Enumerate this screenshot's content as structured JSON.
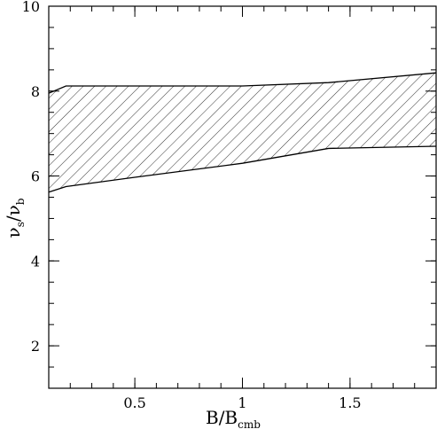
{
  "chart_data": {
    "type": "area",
    "title": "",
    "xlabel": {
      "main": "B/B",
      "sub": "cmb"
    },
    "ylabel": {
      "main": "ν",
      "sub1": "s",
      "slash": "/ν",
      "sub2": "b"
    },
    "xlim": [
      0.1,
      1.9
    ],
    "ylim": [
      1,
      10
    ],
    "x_ticks": [
      0.5,
      1,
      1.5
    ],
    "x_tick_labels": [
      "0.5",
      "1",
      "1.5"
    ],
    "x_minor_step": 0.1,
    "y_ticks": [
      2,
      4,
      6,
      8,
      10
    ],
    "y_tick_labels": [
      "2",
      "4",
      "6",
      "8",
      "10"
    ],
    "y_minor_step": 0.5,
    "fill_pattern": "diagonal-hatch",
    "series": [
      {
        "role": "upper-bound",
        "x": [
          0.1,
          0.18,
          0.5,
          1.0,
          1.4,
          1.9
        ],
        "y": [
          7.95,
          8.12,
          8.12,
          8.12,
          8.2,
          8.43
        ]
      },
      {
        "role": "lower-bound",
        "x": [
          0.1,
          0.18,
          0.5,
          1.0,
          1.4,
          1.9
        ],
        "y": [
          5.62,
          5.75,
          5.97,
          6.3,
          6.65,
          6.7
        ]
      }
    ]
  }
}
